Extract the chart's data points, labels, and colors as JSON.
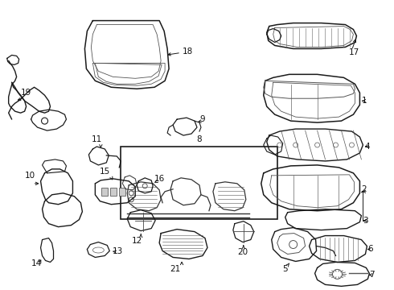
{
  "background_color": "#ffffff",
  "figsize": [
    4.9,
    3.6
  ],
  "dpi": 100,
  "font_size": 7.5,
  "ec": "#1a1a1a",
  "lw_main": 1.0,
  "lw_detail": 0.5
}
